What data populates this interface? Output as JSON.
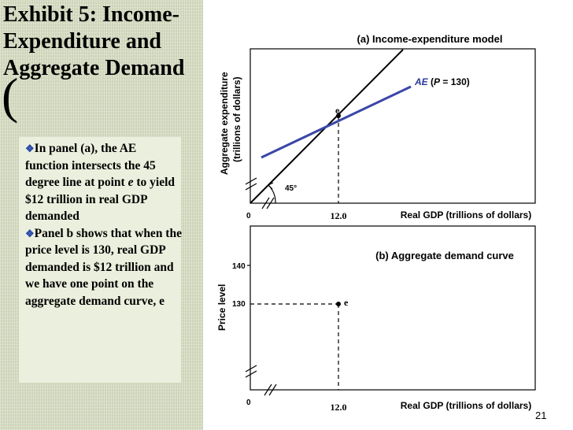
{
  "slide": {
    "title_lines": [
      "Exhibit 5: Income-",
      "Expenditure and",
      "Aggregate Demand"
    ],
    "bracket": "(",
    "bullets": [
      {
        "marker": "❖",
        "parts": [
          "In panel (a), the AE function intersects the 45 degree line at point ",
          "e",
          " to yield $12 trillion in real GDP demanded"
        ]
      },
      {
        "marker": "❖",
        "parts": [
          "Panel b shows that when the price level is 130, real GDP demanded is $12 trillion and we have one point on the aggregate demand curve, e"
        ]
      }
    ],
    "page_number": "21"
  },
  "panel_a": {
    "title": "(a) Income-expenditure model",
    "ylabel_line1": "Aggregate expenditure",
    "ylabel_line2": "(trillions of dollars)",
    "xlabel": "Real GDP (trillions of dollars)",
    "origin_label": "0",
    "x_tick": "12.0",
    "point_label": "e",
    "angle_label": "45°",
    "ae_label": {
      "name": "AE",
      "open": " (",
      "var": "P",
      "eq": " = ",
      "value": "130",
      "close": ")"
    },
    "ae_line_color": "#3a46a8",
    "line_45_color": "#000000"
  },
  "panel_b": {
    "title": "(b) Aggregate demand curve",
    "ylabel": "Price level",
    "xlabel": "Real GDP (trillions of dollars)",
    "origin_label": "0",
    "x_tick": "12.0",
    "y_ticks": [
      "140",
      "130"
    ],
    "point_label": "e"
  }
}
